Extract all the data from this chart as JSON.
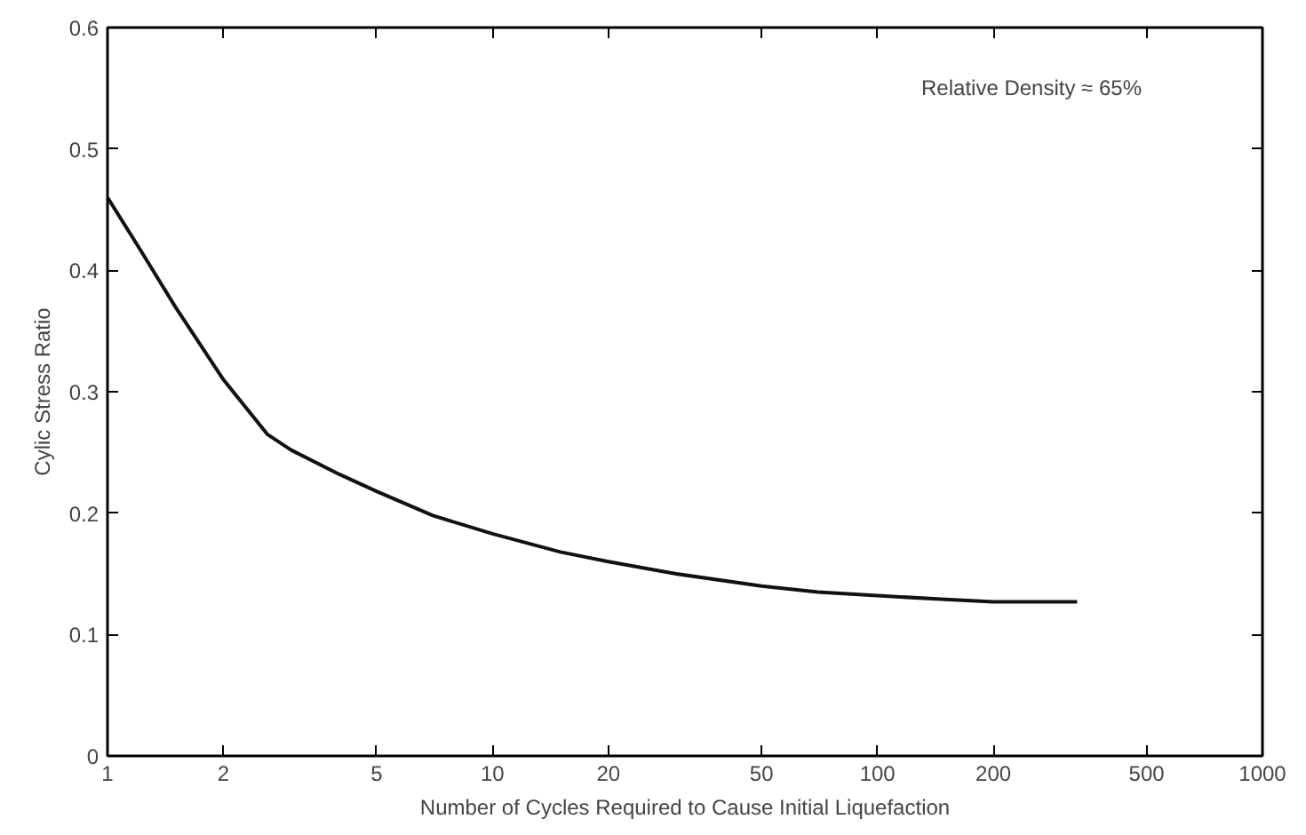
{
  "chart_data": {
    "type": "line",
    "xlabel": "Number of Cycles Required to Cause Initial Liquefaction",
    "ylabel": "Cylic Stress Ratio",
    "annotations": [
      "Relative Density ≈ 65%"
    ],
    "log": "x",
    "grid": false,
    "marker": "none",
    "line_style": "solid",
    "xlim": [
      1,
      1000
    ],
    "xticks": [
      1,
      2,
      5,
      10,
      20,
      50,
      100,
      200,
      500,
      1000
    ],
    "ylim": [
      0,
      0.6
    ],
    "yticks": [
      0,
      0.1,
      0.2,
      0.3,
      0.4,
      0.5,
      0.6
    ],
    "series": [
      {
        "color": "#111111",
        "x": [
          1,
          1.2,
          1.5,
          2,
          2.6,
          3,
          4,
          5,
          7,
          10,
          15,
          20,
          30,
          50,
          70,
          100,
          150,
          200,
          330
        ],
        "values": [
          0.46,
          0.42,
          0.37,
          0.31,
          0.265,
          0.252,
          0.232,
          0.218,
          0.198,
          0.183,
          0.168,
          0.16,
          0.15,
          0.14,
          0.135,
          0.132,
          0.129,
          0.127,
          0.127
        ]
      }
    ]
  }
}
